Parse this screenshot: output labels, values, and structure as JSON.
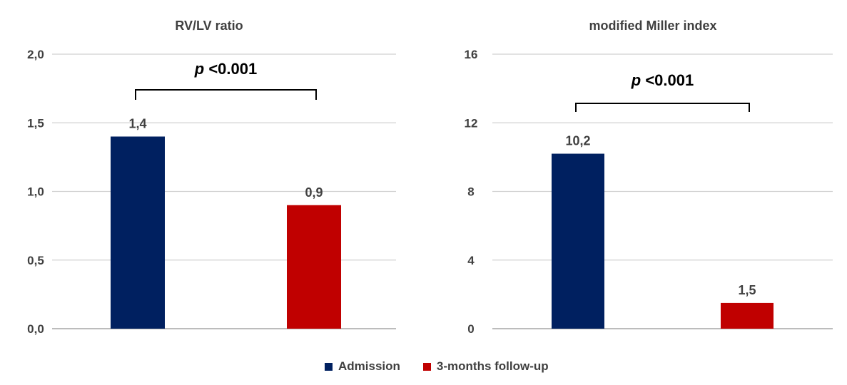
{
  "chart_data": [
    {
      "type": "bar",
      "title": "RV/LV ratio",
      "categories": [
        "Admission",
        "3-months follow-up"
      ],
      "values": [
        1.4,
        0.9
      ],
      "value_labels": [
        "1,4",
        "0,9"
      ],
      "ylim": [
        0,
        2.0
      ],
      "yticks": [
        0,
        0.5,
        1.0,
        1.5,
        2.0
      ],
      "ytick_labels": [
        "0,0",
        "0,5",
        "1,0",
        "1,5",
        "2,0"
      ],
      "grid": true,
      "annotation": {
        "italic": "p",
        "text": "<0.001"
      }
    },
    {
      "type": "bar",
      "title": "modified Miller index",
      "categories": [
        "Admission",
        "3-months follow-up"
      ],
      "values": [
        10.2,
        1.5
      ],
      "value_labels": [
        "10,2",
        "1,5"
      ],
      "ylim": [
        0,
        16
      ],
      "yticks": [
        0,
        4,
        8,
        12,
        16
      ],
      "ytick_labels": [
        "0",
        "4",
        "8",
        "12",
        "16"
      ],
      "grid": true,
      "annotation": {
        "italic": "p",
        "text": "<0.001"
      }
    }
  ],
  "legend": {
    "placement": "bottom",
    "items": [
      {
        "label": "Admission",
        "color": "#002060"
      },
      {
        "label": "3-months follow-up",
        "color": "#c00000"
      }
    ]
  }
}
